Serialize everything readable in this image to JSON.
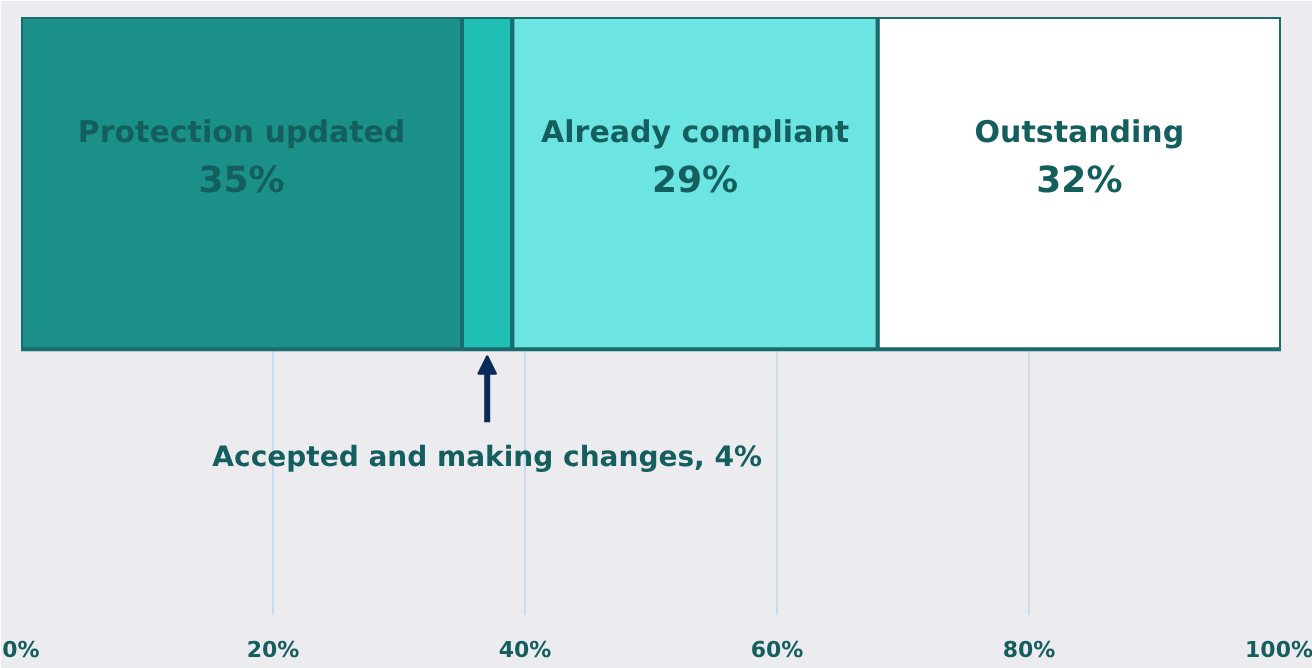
{
  "chart_data": {
    "type": "bar",
    "orientation": "horizontal",
    "stacked": true,
    "categories": [
      null
    ],
    "series": [
      {
        "name": "Protection updated",
        "color": "#1a9088",
        "values": [
          35
        ],
        "value_labels": [
          "35%"
        ]
      },
      {
        "color": "#20bfb5",
        "values": [
          4
        ]
      },
      {
        "name": "Already compliant",
        "color": "#6ce4e2",
        "values": [
          29
        ],
        "value_labels": [
          "29%"
        ]
      },
      {
        "name": "Outstanding",
        "color": "#ffffff",
        "values": [
          32
        ],
        "value_labels": [
          "32%"
        ]
      }
    ],
    "xlim": [
      0,
      100
    ],
    "xticks": [
      {
        "value": 0,
        "label": "0%"
      },
      {
        "value": 20,
        "label": "20%"
      },
      {
        "value": 40,
        "label": "40%"
      },
      {
        "value": 60,
        "label": "60%"
      },
      {
        "value": 80,
        "label": "80%"
      },
      {
        "value": 100,
        "label": "100%"
      }
    ],
    "grid": "x",
    "tick_labels": "x",
    "annotations": [
      "Accepted and making changes, 4%"
    ]
  }
}
